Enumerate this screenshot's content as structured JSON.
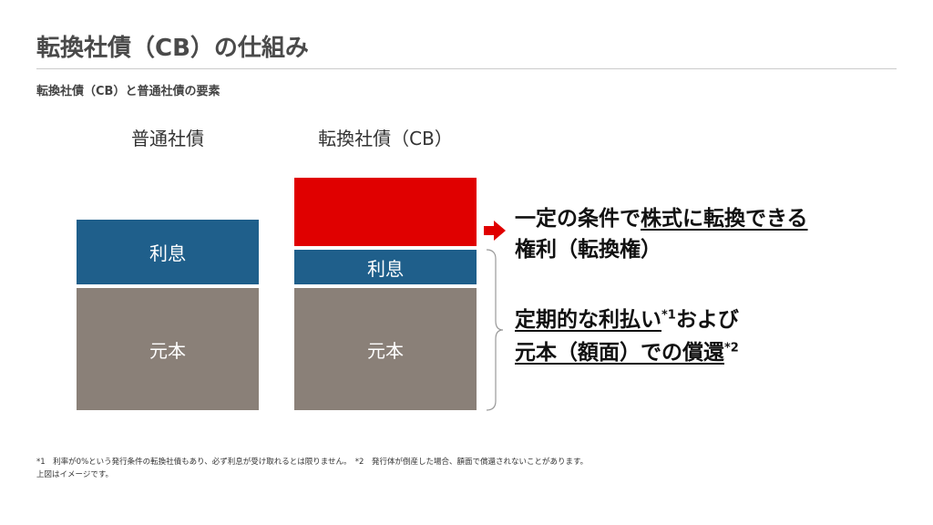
{
  "header": {
    "title": "転換社債（CB）の仕組み",
    "subtitle": "転換社債（CB）と普通社債の要素"
  },
  "columns": [
    {
      "label": "普通社債",
      "blocks": [
        "利息",
        "元本"
      ]
    },
    {
      "label": "転換社債（CB）",
      "blocks": [
        "利息",
        "元本"
      ]
    }
  ],
  "conversion_right": {
    "line1_plain": "一定の条件で",
    "line1_underlined": "株式に転換できる",
    "line2": "権利（転換権）"
  },
  "payment": {
    "line1_underlined": "定期的な利払い",
    "note1": "*1",
    "line1_rest": "および",
    "line2_underlined": "元本（額面）での償還",
    "note2": "*2"
  },
  "footnotes": [
    "*1　利率が0%という発行条件の転換社債もあり、必ず利息が受け取れるとは限りません。　*2　発行体が倒産した場合、額面で償還されないことがあります。",
    "上図はイメージです。"
  ]
}
